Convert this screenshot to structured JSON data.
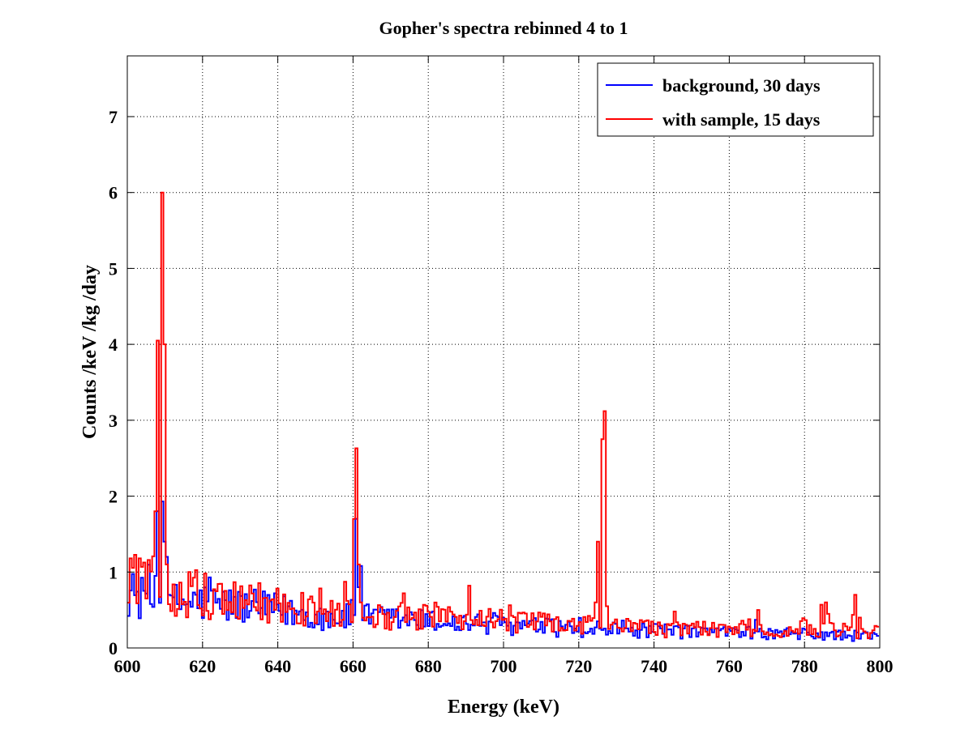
{
  "chart_data": {
    "type": "line",
    "step": true,
    "title": "Gopher's spectra rebinned 4 to 1",
    "xlabel": "Energy (keV)",
    "ylabel": "Counts /keV /kg /day",
    "xlim": [
      600,
      800
    ],
    "ylim": [
      0,
      7.8
    ],
    "xticks": [
      600,
      620,
      640,
      660,
      680,
      700,
      720,
      740,
      760,
      780,
      800
    ],
    "yticks": [
      0,
      1,
      2,
      3,
      4,
      5,
      6,
      7
    ],
    "grid": true,
    "legend_position": "top-right",
    "bin_width": 0.6,
    "bin_start": 600,
    "series": [
      {
        "name": "background, 30 days",
        "color": "#0000ff",
        "baseline": [
          [
            600,
            0.75
          ],
          [
            606,
            0.6
          ],
          [
            608,
            0.75
          ],
          [
            611,
            0.6
          ],
          [
            620,
            0.6
          ],
          [
            630,
            0.55
          ],
          [
            640,
            0.5
          ],
          [
            650,
            0.42
          ],
          [
            660,
            0.4
          ],
          [
            670,
            0.38
          ],
          [
            680,
            0.35
          ],
          [
            700,
            0.3
          ],
          [
            720,
            0.25
          ],
          [
            740,
            0.22
          ],
          [
            760,
            0.2
          ],
          [
            780,
            0.18
          ],
          [
            800,
            0.15
          ]
        ],
        "peaks": [
          {
            "x": 607.8,
            "y": 0.95
          },
          {
            "x": 608.4,
            "y": 1.8
          },
          {
            "x": 609.0,
            "y": 1.93
          },
          {
            "x": 609.6,
            "y": 1.4
          },
          {
            "x": 610.2,
            "y": 1.2
          },
          {
            "x": 621.6,
            "y": 0.93
          },
          {
            "x": 660.6,
            "y": 1.7
          },
          {
            "x": 661.2,
            "y": 1.35
          },
          {
            "x": 661.8,
            "y": 0.8
          },
          {
            "x": 662.4,
            "y": 1.08
          }
        ]
      },
      {
        "name": "with sample, 15 days",
        "color": "#ff0000",
        "baseline": [
          [
            600,
            0.95
          ],
          [
            606,
            0.85
          ],
          [
            612,
            0.75
          ],
          [
            620,
            0.7
          ],
          [
            630,
            0.62
          ],
          [
            640,
            0.55
          ],
          [
            650,
            0.48
          ],
          [
            660,
            0.45
          ],
          [
            670,
            0.42
          ],
          [
            680,
            0.4
          ],
          [
            700,
            0.35
          ],
          [
            720,
            0.3
          ],
          [
            740,
            0.25
          ],
          [
            760,
            0.25
          ],
          [
            780,
            0.25
          ],
          [
            800,
            0.2
          ]
        ],
        "peaks": [
          {
            "x": 600.6,
            "y": 1.18
          },
          {
            "x": 603.0,
            "y": 1.18
          },
          {
            "x": 607.8,
            "y": 1.8
          },
          {
            "x": 608.4,
            "y": 4.05
          },
          {
            "x": 609.0,
            "y": 6.0
          },
          {
            "x": 609.6,
            "y": 4.0
          },
          {
            "x": 610.2,
            "y": 1.1
          },
          {
            "x": 616.8,
            "y": 1.0
          },
          {
            "x": 658.2,
            "y": 0.62
          },
          {
            "x": 660.0,
            "y": 1.7
          },
          {
            "x": 660.6,
            "y": 2.63
          },
          {
            "x": 661.2,
            "y": 2.08
          },
          {
            "x": 661.8,
            "y": 1.1
          },
          {
            "x": 673.8,
            "y": 0.72
          },
          {
            "x": 690.6,
            "y": 0.82
          },
          {
            "x": 724.8,
            "y": 0.6
          },
          {
            "x": 725.4,
            "y": 1.4
          },
          {
            "x": 726.0,
            "y": 2.75
          },
          {
            "x": 726.6,
            "y": 3.12
          },
          {
            "x": 727.2,
            "y": 1.52
          },
          {
            "x": 727.8,
            "y": 0.55
          },
          {
            "x": 745.2,
            "y": 0.48
          },
          {
            "x": 767.4,
            "y": 0.5
          },
          {
            "x": 784.8,
            "y": 0.57
          },
          {
            "x": 785.4,
            "y": 0.6
          },
          {
            "x": 786.0,
            "y": 0.45
          },
          {
            "x": 793.8,
            "y": 0.7
          },
          {
            "x": 794.4,
            "y": 0.4
          }
        ]
      }
    ]
  }
}
